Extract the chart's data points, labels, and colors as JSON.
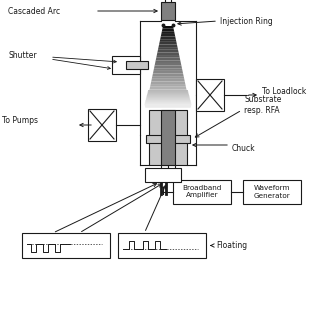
{
  "bg_color": "#ffffff",
  "line_color": "#1a1a1a",
  "gray_light": "#c8c8c8",
  "gray_mid": "#808080",
  "gray_dark": "#404040",
  "white": "#ffffff",
  "labels": {
    "cascaded_arc": "Cascaded Arc",
    "injection_ring": "Injection Ring",
    "shutter": "Shutter",
    "to_loadlock": "To Loadlock",
    "to_pumps": "To Pumps",
    "substrate": "Substrate\nresp. RFA",
    "chuck": "Chuck",
    "broadband": "Broadband\nAmplifier",
    "waveform": "Waveform\nGenerator",
    "floating": "Floating"
  },
  "figsize": [
    3.2,
    3.2
  ],
  "dpi": 100
}
